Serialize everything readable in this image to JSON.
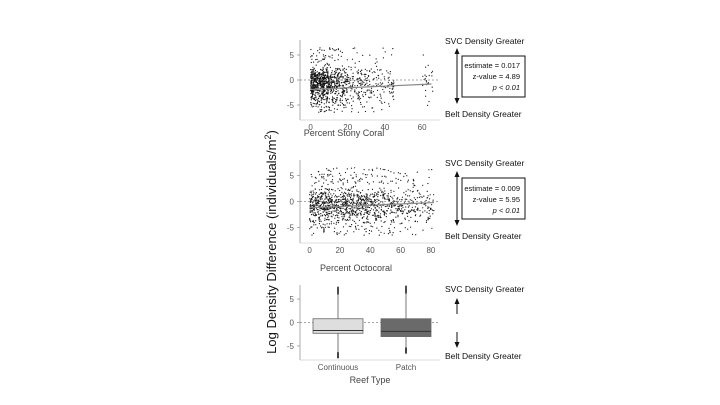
{
  "figure": {
    "y_axis_label_main": "Log Density Difference (individuals/m",
    "y_axis_label_sup": "2",
    "y_axis_label_end": ")"
  },
  "chart_data": [
    {
      "type": "scatter",
      "xlabel": "Percent Stony Coral",
      "xlim": [
        -3,
        68
      ],
      "ylim": [
        -8,
        8
      ],
      "x_ticks": [
        0,
        20,
        40,
        60
      ],
      "y_ticks": [
        5,
        0,
        -5
      ],
      "x_tick_labels": [
        "0",
        "20",
        "40",
        "60"
      ],
      "y_tick_labels": [
        "5",
        "0",
        "-5"
      ],
      "zero_reference_line": true,
      "trend_line": {
        "x": [
          0,
          65
        ],
        "y": [
          -1.9,
          -0.8
        ]
      },
      "top_label": "SVC Density Greater",
      "bottom_label": "Belt Density Greater",
      "stats": {
        "estimate": "estimate = 0.017",
        "z_value": "z-value = 4.89",
        "p_value": "p < 0.01"
      },
      "point_density": [
        {
          "x_range": [
            0,
            3
          ],
          "count": 190
        },
        {
          "x_range": [
            3,
            10
          ],
          "count": 380
        },
        {
          "x_range": [
            10,
            20
          ],
          "count": 280
        },
        {
          "x_range": [
            20,
            30
          ],
          "count": 120
        },
        {
          "x_range": [
            30,
            40
          ],
          "count": 80
        },
        {
          "x_range": [
            40,
            45
          ],
          "count": 40
        },
        {
          "x_range": [
            60,
            66
          ],
          "count": 25
        }
      ]
    },
    {
      "type": "scatter",
      "xlabel": "Percent Octocoral",
      "xlim": [
        -3,
        84
      ],
      "ylim": [
        -8,
        8
      ],
      "x_ticks": [
        0,
        20,
        40,
        60,
        80
      ],
      "y_ticks": [
        5,
        0,
        -5
      ],
      "x_tick_labels": [
        "0",
        "20",
        "40",
        "60",
        "80"
      ],
      "y_tick_labels": [
        "5",
        "0",
        "-5"
      ],
      "zero_reference_line": true,
      "trend_line": {
        "x": [
          0,
          82
        ],
        "y": [
          -1.2,
          -0.2
        ]
      },
      "top_label": "SVC Density Greater",
      "bottom_label": "Belt Density Greater",
      "stats": {
        "estimate": "estimate = 0.009",
        "z_value": "z-value = 5.95",
        "p_value": "p < 0.01"
      },
      "point_density": [
        {
          "x_range": [
            0,
            10
          ],
          "count": 230
        },
        {
          "x_range": [
            10,
            20
          ],
          "count": 210
        },
        {
          "x_range": [
            20,
            30
          ],
          "count": 200
        },
        {
          "x_range": [
            30,
            40
          ],
          "count": 190
        },
        {
          "x_range": [
            40,
            50
          ],
          "count": 150
        },
        {
          "x_range": [
            50,
            60
          ],
          "count": 110
        },
        {
          "x_range": [
            60,
            70
          ],
          "count": 90
        },
        {
          "x_range": [
            70,
            82
          ],
          "count": 70
        }
      ]
    },
    {
      "type": "box",
      "xlabel": "Reef Type",
      "categories": [
        "Continuous",
        "Patch"
      ],
      "ylim": [
        -8,
        8
      ],
      "y_ticks": [
        5,
        0,
        -5
      ],
      "y_tick_labels": [
        "5",
        "0",
        "-5"
      ],
      "zero_reference_line": true,
      "top_label": "SVC Density Greater",
      "bottom_label": "Belt Density Greater",
      "colors": [
        "#dedede",
        "#6a6a6a"
      ],
      "boxes": [
        {
          "category": "Continuous",
          "min": -7.5,
          "q1": -2.3,
          "median": -1.7,
          "q3": 0.8,
          "max": 7.5
        },
        {
          "category": "Patch",
          "min": -6.5,
          "q1": -3.0,
          "median": -1.9,
          "q3": 0.8,
          "max": 7.7
        }
      ]
    }
  ]
}
